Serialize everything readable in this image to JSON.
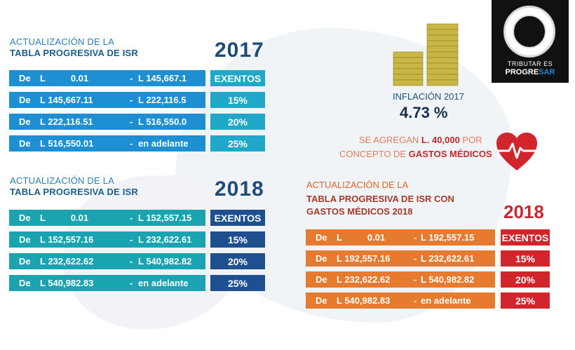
{
  "colors": {
    "blue_row": "#1e8fd2",
    "blue_rate": "#20a8c8",
    "teal_row": "#1aa4b2",
    "navy_rate": "#1e4f8f",
    "orange_row": "#e67a2e",
    "red_rate": "#d2242b"
  },
  "table_2017": {
    "heading_line1": "ACTUALIZACIÓN DE LA",
    "heading_line2": "TABLA PROGRESIVA DE ISR",
    "year": "2017",
    "rows": [
      {
        "de": "De",
        "from": "L          0.01",
        "dash": "-",
        "to": "L 145,667.1",
        "rate": "EXENTOS"
      },
      {
        "de": "De",
        "from": "L 145,667.11",
        "dash": "-",
        "to": "L 222,116.5",
        "rate": "15%"
      },
      {
        "de": "De",
        "from": "L 222,116.51",
        "dash": "-",
        "to": "L 516,550.0",
        "rate": "20%"
      },
      {
        "de": "De",
        "from": "L 516,550.01",
        "dash": "-",
        "to": "en adelante",
        "rate": "25%"
      }
    ]
  },
  "table_2018": {
    "heading_line1": "ACTUALIZACIÓN DE LA",
    "heading_line2": "TABLA PROGRESIVA DE ISR",
    "year": "2018",
    "rows": [
      {
        "de": "De",
        "from": "L          0.01",
        "dash": "-",
        "to": "L 152,557.15",
        "rate": "EXENTOS"
      },
      {
        "de": "De",
        "from": "L 152,557.16",
        "dash": "-",
        "to": "L 232,622.61",
        "rate": "15%"
      },
      {
        "de": "De",
        "from": "L 232,622.62",
        "dash": "-",
        "to": "L 540,982.82",
        "rate": "20%"
      },
      {
        "de": "De",
        "from": "L 540,982.83",
        "dash": "-",
        "to": "en adelante",
        "rate": "25%"
      }
    ]
  },
  "table_2018_gm": {
    "heading_line1": "ACTUALIZACIÓN DE LA",
    "heading_line2": "TABLA PROGRESIVA DE ISR CON",
    "heading_line3": "GASTOS MÉDICOS 2018",
    "year": "2018",
    "rows": [
      {
        "de": "De",
        "from": "L          0.01",
        "dash": "-",
        "to": "L 192,557.15",
        "rate": "EXENTOS"
      },
      {
        "de": "De",
        "from": "L 192,557.16",
        "dash": "-",
        "to": "L 232,622.61",
        "rate": "15%"
      },
      {
        "de": "De",
        "from": "L 232,622.62",
        "dash": "-",
        "to": "L 540,982.82",
        "rate": "20%"
      },
      {
        "de": "De",
        "from": "L 540,982.83",
        "dash": "-",
        "to": "en adelante",
        "rate": "25%"
      }
    ]
  },
  "inflation": {
    "label": "INFLACIÓN 2017",
    "value": "4.73 %",
    "icon": "coins-icon"
  },
  "medical": {
    "line1_a": "SE AGREGAN ",
    "line1_b": "L. 40,000",
    "line1_c": " POR",
    "line2_a": "CONCEPTO DE ",
    "line2_b": "GASTOS MÉDICOS",
    "icon": "heart-pulse-icon"
  },
  "logo": {
    "line1": "TRIBUTAR ES",
    "line2_a": "PROGRE",
    "line2_b": "SAR"
  }
}
